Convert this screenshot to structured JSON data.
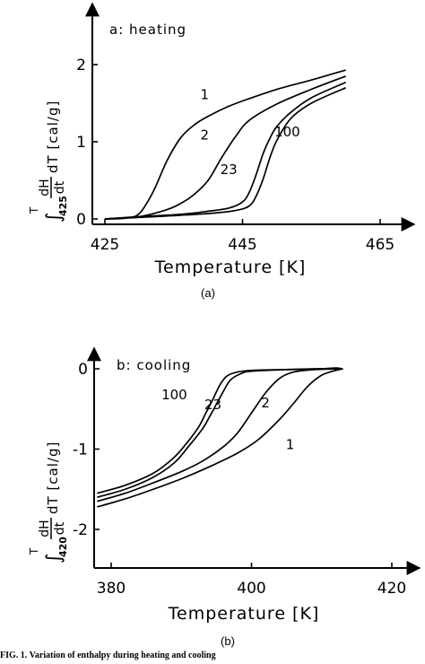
{
  "caption": "FIG. 1. Variation of enthalpy during heating and cooling",
  "chart_data": [
    {
      "type": "line",
      "panel_label": "a: heating",
      "sublabel": "(a)",
      "xlabel": "Temperature [K]",
      "ylabel": "∫ dH/dt dT [cal/g]",
      "ylabel_parts": {
        "upper": "T",
        "lower": "425",
        "num": "dH",
        "den": "dt",
        "rest": "dT [cal/g]"
      },
      "xlim": [
        420,
        468
      ],
      "ylim": [
        -0.05,
        2.5
      ],
      "xticks": [
        425,
        445,
        465
      ],
      "yticks": [
        0,
        1,
        2
      ],
      "series": [
        {
          "name": "1",
          "x": [
            425,
            428,
            430,
            432,
            434,
            436,
            438,
            440,
            443,
            446,
            450,
            455,
            460
          ],
          "y": [
            0,
            0.01,
            0.07,
            0.35,
            0.75,
            1.05,
            1.22,
            1.33,
            1.46,
            1.56,
            1.68,
            1.8,
            1.93
          ]
        },
        {
          "name": "2",
          "x": [
            425,
            430,
            434,
            436,
            438,
            440,
            442,
            444,
            446,
            450,
            455,
            460
          ],
          "y": [
            0,
            0.03,
            0.12,
            0.2,
            0.32,
            0.5,
            0.8,
            1.07,
            1.28,
            1.49,
            1.68,
            1.85
          ]
        },
        {
          "name": "23",
          "x": [
            425,
            430,
            436,
            440,
            443,
            445,
            446,
            447,
            448,
            449,
            450,
            452,
            455,
            460
          ],
          "y": [
            0,
            0.03,
            0.06,
            0.1,
            0.14,
            0.22,
            0.35,
            0.58,
            0.85,
            1.05,
            1.2,
            1.38,
            1.57,
            1.77
          ]
        },
        {
          "name": "100",
          "x": [
            425,
            430,
            440,
            444,
            446,
            447,
            448,
            449,
            450,
            452,
            455,
            460
          ],
          "y": [
            0,
            0.02,
            0.07,
            0.11,
            0.17,
            0.3,
            0.52,
            0.8,
            1.02,
            1.3,
            1.5,
            1.7
          ]
        }
      ],
      "curve_labels": [
        {
          "text": "1",
          "x": 439.5,
          "y": 1.55
        },
        {
          "text": "2",
          "x": 439.5,
          "y": 1.03
        },
        {
          "text": "23",
          "x": 443.0,
          "y": 0.58
        },
        {
          "text": "100",
          "x": 451.5,
          "y": 1.07
        }
      ]
    },
    {
      "type": "line",
      "panel_label": "b: cooling",
      "sublabel": "(b)",
      "xlabel": "Temperature [K]",
      "ylabel": "∫ dH/dt dT [cal/g]",
      "ylabel_parts": {
        "upper": "T",
        "lower": "420",
        "num": "dH",
        "den": "dt",
        "rest": "dT [cal/g]"
      },
      "xlim": [
        378,
        425
      ],
      "ylim": [
        -2.55,
        0.2
      ],
      "xticks": [
        380,
        400,
        420
      ],
      "yticks": [
        0,
        -1,
        -2
      ],
      "series": [
        {
          "name": "100",
          "x": [
            378,
            382,
            386,
            389,
            391,
            392.5,
            393.5,
            394.5,
            395.5,
            396.5,
            398,
            400,
            405,
            410,
            412,
            413
          ],
          "y": [
            -1.55,
            -1.45,
            -1.3,
            -1.1,
            -0.9,
            -0.72,
            -0.55,
            -0.38,
            -0.2,
            -0.09,
            -0.04,
            -0.02,
            -0.01,
            0,
            0.01,
            0
          ]
        },
        {
          "name": "23",
          "x": [
            378,
            382,
            386,
            389,
            391,
            393,
            394,
            395,
            396,
            397,
            398.5,
            400,
            405,
            410,
            413
          ],
          "y": [
            -1.6,
            -1.5,
            -1.35,
            -1.17,
            -0.97,
            -0.75,
            -0.6,
            -0.44,
            -0.28,
            -0.14,
            -0.06,
            -0.03,
            -0.01,
            0,
            0
          ]
        },
        {
          "name": "2",
          "x": [
            378,
            382,
            386,
            390,
            393,
            396,
            398,
            400,
            402,
            404,
            406,
            409,
            413
          ],
          "y": [
            -1.65,
            -1.55,
            -1.42,
            -1.28,
            -1.15,
            -0.97,
            -0.8,
            -0.55,
            -0.3,
            -0.12,
            -0.04,
            -0.01,
            0
          ]
        },
        {
          "name": "1",
          "x": [
            378,
            382,
            386,
            390,
            394,
            398,
            401,
            404,
            406,
            408,
            410,
            412,
            413
          ],
          "y": [
            -1.72,
            -1.62,
            -1.5,
            -1.37,
            -1.22,
            -1.05,
            -0.88,
            -0.63,
            -0.43,
            -0.22,
            -0.08,
            -0.02,
            0
          ]
        }
      ],
      "curve_labels": [
        {
          "text": "100",
          "x": 389.0,
          "y": -0.38
        },
        {
          "text": "23",
          "x": 394.5,
          "y": -0.5
        },
        {
          "text": "2",
          "x": 402.0,
          "y": -0.48
        },
        {
          "text": "1",
          "x": 405.5,
          "y": -1.0
        }
      ]
    }
  ]
}
